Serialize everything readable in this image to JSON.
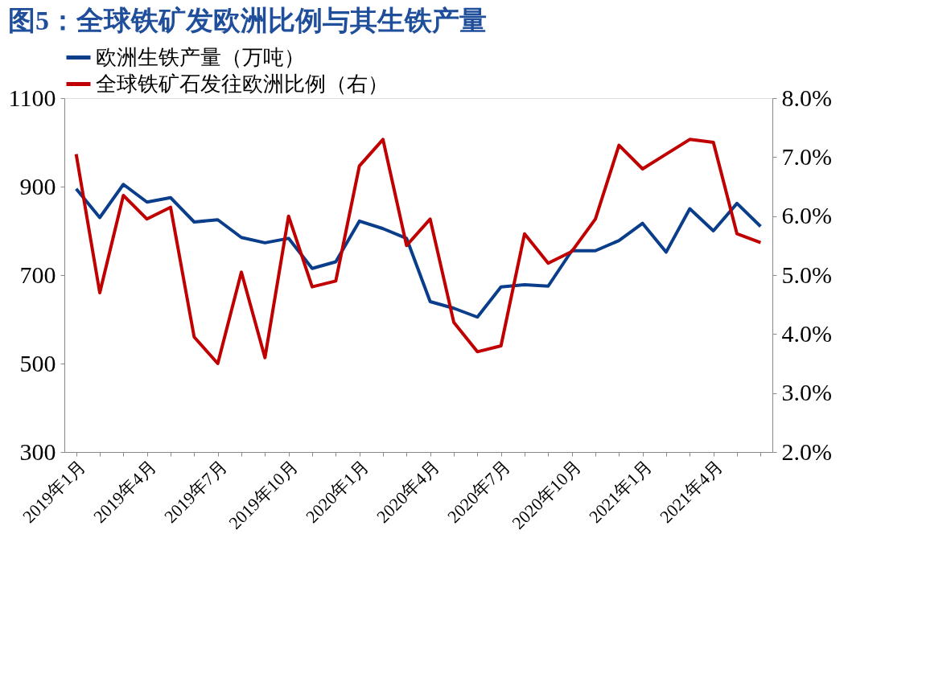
{
  "chart_data": {
    "type": "line",
    "title": "图5：全球铁矿发欧洲比例与其生铁产量",
    "categories": [
      "2019年1月",
      null,
      null,
      "2019年4月",
      null,
      null,
      "2019年7月",
      null,
      null,
      "2019年10月",
      null,
      null,
      "2020年1月",
      null,
      null,
      "2020年4月",
      null,
      null,
      "2020年7月",
      null,
      null,
      "2020年10月",
      null,
      null,
      "2021年1月",
      null,
      null,
      "2021年4月",
      null,
      null
    ],
    "series": [
      {
        "name": "欧洲生铁产量（万吨）",
        "color": "#0a3d8a",
        "values": [
          895,
          830,
          905,
          865,
          875,
          820,
          825,
          785,
          773,
          783,
          715,
          730,
          822,
          805,
          783,
          640,
          625,
          605,
          673,
          678,
          675,
          755,
          755,
          778,
          817,
          752,
          850,
          800,
          862,
          810
        ]
      },
      {
        "name": "全球铁矿石发往欧洲比例（右）",
        "color": "#c00000",
        "axis": "y2",
        "values": [
          7.05,
          4.7,
          6.35,
          5.95,
          6.15,
          3.95,
          3.5,
          5.05,
          3.6,
          6.0,
          4.8,
          4.9,
          6.85,
          7.3,
          5.5,
          5.95,
          4.2,
          3.7,
          3.8,
          5.7,
          5.2,
          5.4,
          5.95,
          7.2,
          6.8,
          7.05,
          7.3,
          7.25,
          5.7,
          5.55
        ]
      }
    ],
    "ylim": [
      300,
      1100
    ],
    "yticks": [
      300,
      500,
      700,
      900,
      1100
    ],
    "y2lim": [
      2,
      8
    ],
    "y2ticks": [
      {
        "value": 2,
        "label": "2.0%"
      },
      {
        "value": 3,
        "label": "3.0%"
      },
      {
        "value": 4,
        "label": "4.0%"
      },
      {
        "value": 5,
        "label": "5.0%"
      },
      {
        "value": 6,
        "label": "6.0%"
      },
      {
        "value": 7,
        "label": "7.0%"
      },
      {
        "value": 8,
        "label": "8.0%"
      }
    ],
    "legend": "top",
    "grid": false,
    "line_style": "solid",
    "marker": "none"
  }
}
